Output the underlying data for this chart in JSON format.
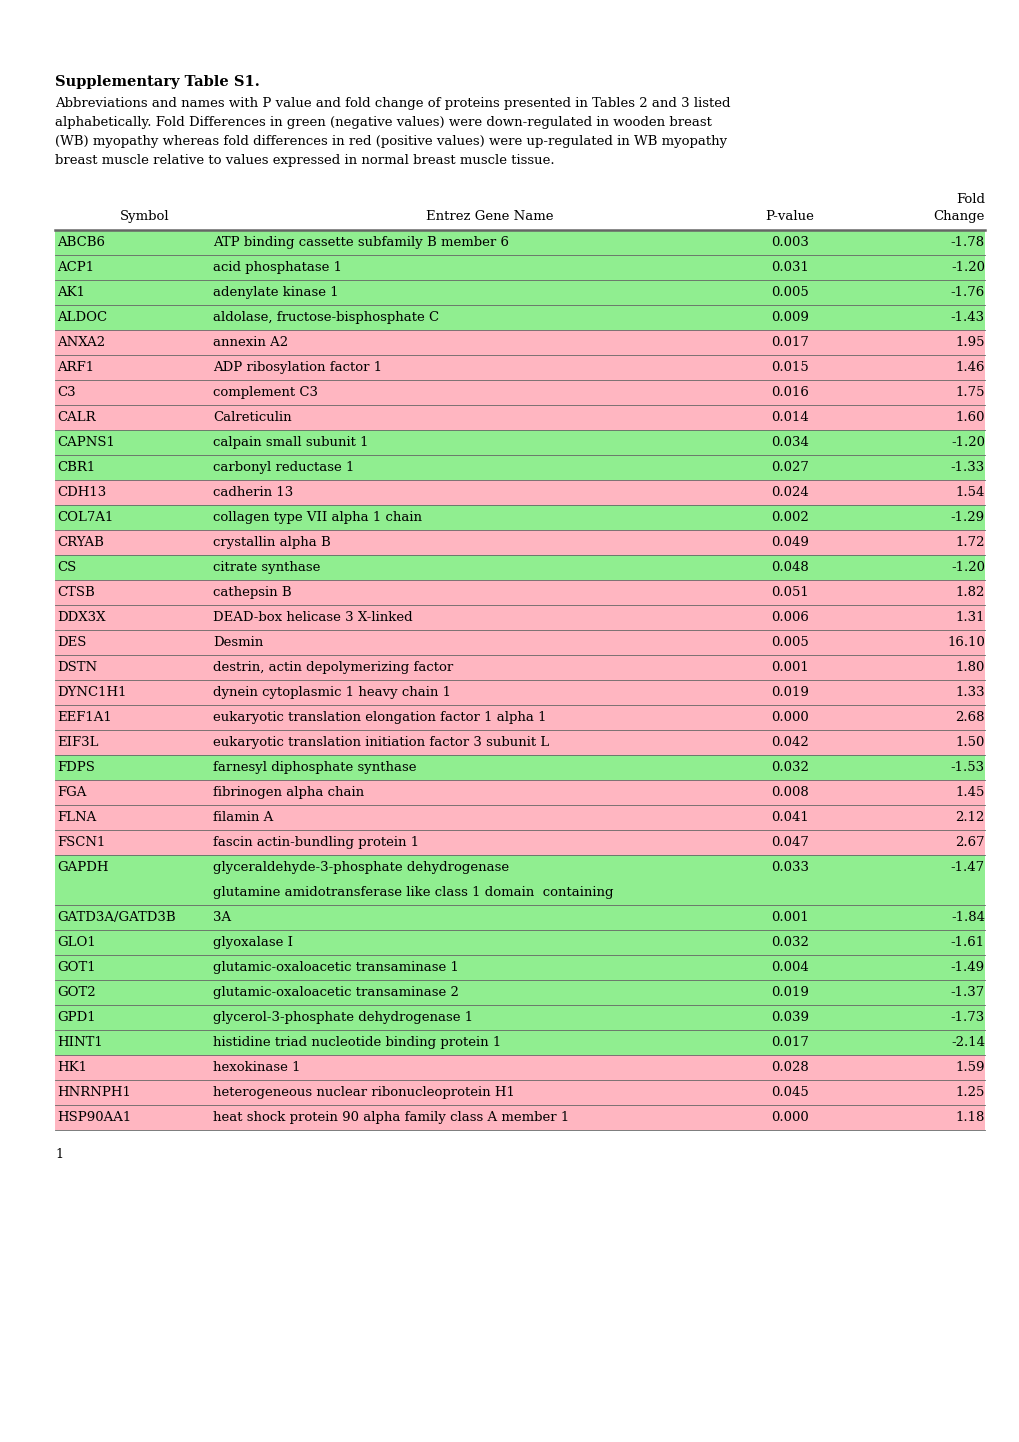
{
  "title": "Supplementary Table S1.",
  "caption_lines": [
    "Abbreviations and names with P value and fold change of proteins presented in Tables 2 and 3 listed",
    "alphabetically. Fold Differences in green (negative values) were down-regulated in wooden breast",
    "(WB) myopathy whereas fold differences in red (positive values) were up-regulated in WB myopathy",
    "breast muscle relative to values expressed in normal breast muscle tissue."
  ],
  "rows": [
    {
      "symbol": "ABCB6",
      "gene": "ATP binding cassette subfamily B member 6",
      "pval": "0.003",
      "fold": "-1.78",
      "color": "green",
      "extra_line": null
    },
    {
      "symbol": "ACP1",
      "gene": "acid phosphatase 1",
      "pval": "0.031",
      "fold": "-1.20",
      "color": "green",
      "extra_line": null
    },
    {
      "symbol": "AK1",
      "gene": "adenylate kinase 1",
      "pval": "0.005",
      "fold": "-1.76",
      "color": "green",
      "extra_line": null
    },
    {
      "symbol": "ALDOC",
      "gene": "aldolase, fructose-bisphosphate C",
      "pval": "0.009",
      "fold": "-1.43",
      "color": "green",
      "extra_line": null
    },
    {
      "symbol": "ANXA2",
      "gene": "annexin A2",
      "pval": "0.017",
      "fold": "1.95",
      "color": "red",
      "extra_line": null
    },
    {
      "symbol": "ARF1",
      "gene": "ADP ribosylation factor 1",
      "pval": "0.015",
      "fold": "1.46",
      "color": "red",
      "extra_line": null
    },
    {
      "symbol": "C3",
      "gene": "complement C3",
      "pval": "0.016",
      "fold": "1.75",
      "color": "red",
      "extra_line": null
    },
    {
      "symbol": "CALR",
      "gene": "Calreticulin",
      "pval": "0.014",
      "fold": "1.60",
      "color": "red",
      "extra_line": null
    },
    {
      "symbol": "CAPNS1",
      "gene": "calpain small subunit 1",
      "pval": "0.034",
      "fold": "-1.20",
      "color": "green",
      "extra_line": null
    },
    {
      "symbol": "CBR1",
      "gene": "carbonyl reductase 1",
      "pval": "0.027",
      "fold": "-1.33",
      "color": "green",
      "extra_line": null
    },
    {
      "symbol": "CDH13",
      "gene": "cadherin 13",
      "pval": "0.024",
      "fold": "1.54",
      "color": "red",
      "extra_line": null
    },
    {
      "symbol": "COL7A1",
      "gene": "collagen type VII alpha 1 chain",
      "pval": "0.002",
      "fold": "-1.29",
      "color": "green",
      "extra_line": null
    },
    {
      "symbol": "CRYAB",
      "gene": "crystallin alpha B",
      "pval": "0.049",
      "fold": "1.72",
      "color": "red",
      "extra_line": null
    },
    {
      "symbol": "CS",
      "gene": "citrate synthase",
      "pval": "0.048",
      "fold": "-1.20",
      "color": "green",
      "extra_line": null
    },
    {
      "symbol": "CTSB",
      "gene": "cathepsin B",
      "pval": "0.051",
      "fold": "1.82",
      "color": "red",
      "extra_line": null
    },
    {
      "symbol": "DDX3X",
      "gene": "DEAD-box helicase 3 X-linked",
      "pval": "0.006",
      "fold": "1.31",
      "color": "red",
      "extra_line": null
    },
    {
      "symbol": "DES",
      "gene": "Desmin",
      "pval": "0.005",
      "fold": "16.10",
      "color": "red",
      "extra_line": null
    },
    {
      "symbol": "DSTN",
      "gene": "destrin, actin depolymerizing factor",
      "pval": "0.001",
      "fold": "1.80",
      "color": "red",
      "extra_line": null
    },
    {
      "symbol": "DYNC1H1",
      "gene": "dynein cytoplasmic 1 heavy chain 1",
      "pval": "0.019",
      "fold": "1.33",
      "color": "red",
      "extra_line": null
    },
    {
      "symbol": "EEF1A1",
      "gene": "eukaryotic translation elongation factor 1 alpha 1",
      "pval": "0.000",
      "fold": "2.68",
      "color": "red",
      "extra_line": null
    },
    {
      "symbol": "EIF3L",
      "gene": "eukaryotic translation initiation factor 3 subunit L",
      "pval": "0.042",
      "fold": "1.50",
      "color": "red",
      "extra_line": null
    },
    {
      "symbol": "FDPS",
      "gene": "farnesyl diphosphate synthase",
      "pval": "0.032",
      "fold": "-1.53",
      "color": "green",
      "extra_line": null
    },
    {
      "symbol": "FGA",
      "gene": "fibrinogen alpha chain",
      "pval": "0.008",
      "fold": "1.45",
      "color": "red",
      "extra_line": null
    },
    {
      "symbol": "FLNA",
      "gene": "filamin A",
      "pval": "0.041",
      "fold": "2.12",
      "color": "red",
      "extra_line": null
    },
    {
      "symbol": "FSCN1",
      "gene": "fascin actin-bundling protein 1",
      "pval": "0.047",
      "fold": "2.67",
      "color": "red",
      "extra_line": null
    },
    {
      "symbol": "GAPDH",
      "gene": "glyceraldehyde-3-phosphate dehydrogenase",
      "pval": "0.033",
      "fold": "-1.47",
      "color": "green",
      "extra_line": "glutamine amidotransferase like class 1 domain  containing"
    },
    {
      "symbol": "GATD3A/GATD3B",
      "gene": "3A",
      "pval": "0.001",
      "fold": "-1.84",
      "color": "green",
      "extra_line": null
    },
    {
      "symbol": "GLO1",
      "gene": "glyoxalase I",
      "pval": "0.032",
      "fold": "-1.61",
      "color": "green",
      "extra_line": null
    },
    {
      "symbol": "GOT1",
      "gene": "glutamic-oxaloacetic transaminase 1",
      "pval": "0.004",
      "fold": "-1.49",
      "color": "green",
      "extra_line": null
    },
    {
      "symbol": "GOT2",
      "gene": "glutamic-oxaloacetic transaminase 2",
      "pval": "0.019",
      "fold": "-1.37",
      "color": "green",
      "extra_line": null
    },
    {
      "symbol": "GPD1",
      "gene": "glycerol-3-phosphate dehydrogenase 1",
      "pval": "0.039",
      "fold": "-1.73",
      "color": "green",
      "extra_line": null
    },
    {
      "symbol": "HINT1",
      "gene": "histidine triad nucleotide binding protein 1",
      "pval": "0.017",
      "fold": "-2.14",
      "color": "green",
      "extra_line": null
    },
    {
      "symbol": "HK1",
      "gene": "hexokinase 1",
      "pval": "0.028",
      "fold": "1.59",
      "color": "red",
      "extra_line": null
    },
    {
      "symbol": "HNRNPH1",
      "gene": "heterogeneous nuclear ribonucleoprotein H1",
      "pval": "0.045",
      "fold": "1.25",
      "color": "red",
      "extra_line": null
    },
    {
      "symbol": "HSP90AA1",
      "gene": "heat shock protein 90 alpha family class A member 1",
      "pval": "0.000",
      "fold": "1.18",
      "color": "red",
      "extra_line": null
    }
  ],
  "green_color": "#90EE90",
  "red_color": "#FFB6C1",
  "header_line_color": "#666666",
  "text_color": "#000000"
}
